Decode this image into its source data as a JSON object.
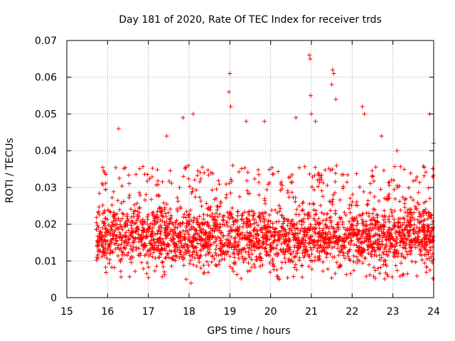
{
  "chart_data": {
    "type": "scatter",
    "title": "Day 181 of 2020, Rate Of TEC Index for receiver trds",
    "xlabel": "GPS time / hours",
    "ylabel": "ROTI / TECUs",
    "xlim": [
      15,
      24
    ],
    "ylim": [
      0,
      0.07
    ],
    "xticks": [
      15,
      16,
      17,
      18,
      19,
      20,
      21,
      22,
      23,
      24
    ],
    "xtick_labels": [
      "15",
      "16",
      "17",
      "18",
      "19",
      "20",
      "21",
      "22",
      "23",
      "24"
    ],
    "yticks": [
      0,
      0.01,
      0.02,
      0.03,
      0.04,
      0.05,
      0.06,
      0.07
    ],
    "ytick_labels": [
      "0",
      "0.01",
      "0.02",
      "0.03",
      "0.04",
      "0.05",
      "0.06",
      "0.07"
    ],
    "grid": true,
    "marker": "plus",
    "series": [
      {
        "name": "ROTI",
        "color": "#ff0000",
        "x_range": [
          15.72,
          24.0
        ],
        "typical_band": [
          0.008,
          0.025
        ],
        "highlights": [
          {
            "x": 16.27,
            "y": 0.046
          },
          {
            "x": 17.45,
            "y": 0.044
          },
          {
            "x": 17.85,
            "y": 0.049
          },
          {
            "x": 18.1,
            "y": 0.05
          },
          {
            "x": 19.0,
            "y": 0.061
          },
          {
            "x": 18.98,
            "y": 0.056
          },
          {
            "x": 19.02,
            "y": 0.052
          },
          {
            "x": 19.4,
            "y": 0.048
          },
          {
            "x": 19.85,
            "y": 0.048
          },
          {
            "x": 20.62,
            "y": 0.049
          },
          {
            "x": 20.95,
            "y": 0.066
          },
          {
            "x": 20.97,
            "y": 0.065
          },
          {
            "x": 20.98,
            "y": 0.055
          },
          {
            "x": 21.0,
            "y": 0.05
          },
          {
            "x": 21.1,
            "y": 0.048
          },
          {
            "x": 21.52,
            "y": 0.062
          },
          {
            "x": 21.55,
            "y": 0.061
          },
          {
            "x": 21.5,
            "y": 0.058
          },
          {
            "x": 21.6,
            "y": 0.054
          },
          {
            "x": 22.25,
            "y": 0.052
          },
          {
            "x": 22.3,
            "y": 0.05
          },
          {
            "x": 22.72,
            "y": 0.044
          },
          {
            "x": 23.1,
            "y": 0.04
          },
          {
            "x": 23.9,
            "y": 0.05
          },
          {
            "x": 24.0,
            "y": 0.042
          },
          {
            "x": 18.05,
            "y": 0.004
          }
        ]
      }
    ]
  }
}
